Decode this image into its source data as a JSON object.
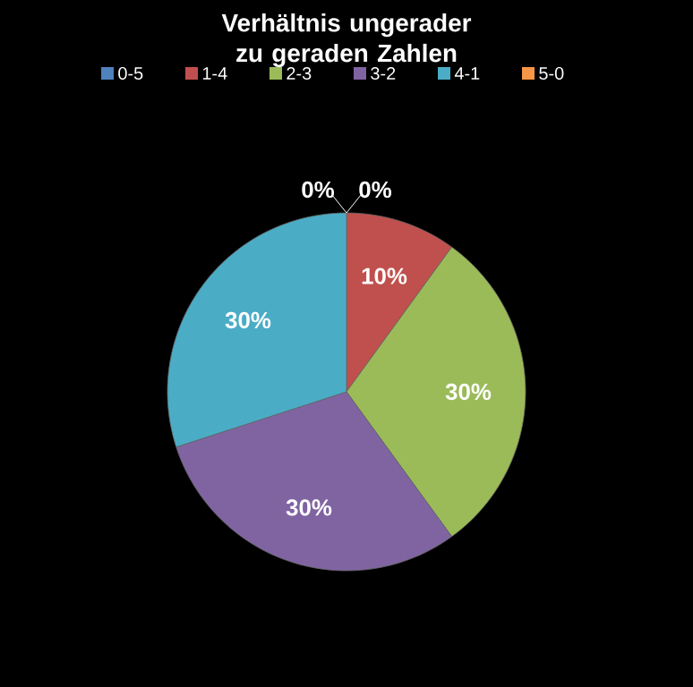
{
  "chart_data": {
    "type": "pie",
    "title": "Verhältnis ungerader zu geraden Zahlen",
    "categories": [
      "0-5",
      "1-4",
      "2-3",
      "3-2",
      "4-1",
      "5-0"
    ],
    "values": [
      0,
      10,
      30,
      30,
      30,
      0
    ],
    "colors": [
      "#4f81bd",
      "#c0504d",
      "#9bbb59",
      "#8064a2",
      "#4bacc6",
      "#f79646"
    ],
    "value_labels": [
      "0%",
      "10%",
      "30%",
      "30%",
      "30%",
      "0%"
    ],
    "legend": "top"
  }
}
